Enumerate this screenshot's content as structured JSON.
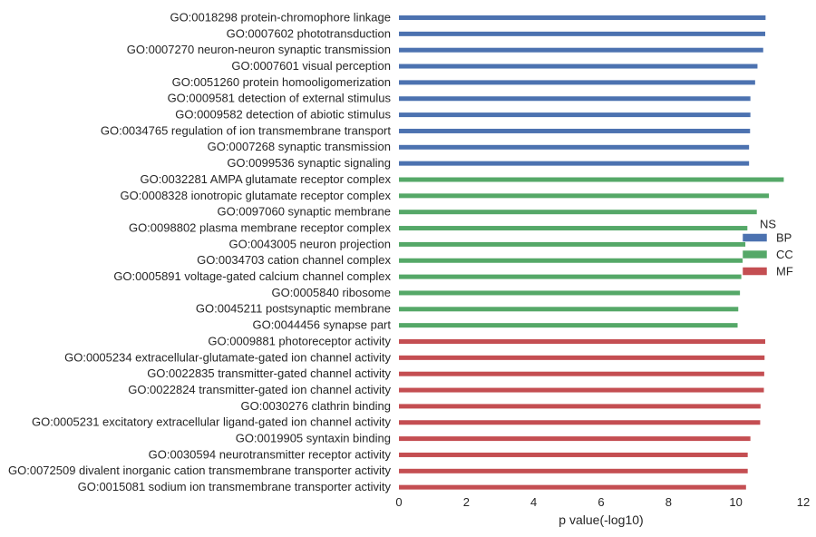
{
  "chart_data": {
    "type": "bar",
    "orientation": "horizontal",
    "xlabel": "p value(-log10)",
    "ylabel": "",
    "title": "",
    "xlim": [
      0,
      12
    ],
    "xticks": [
      "0",
      "2",
      "4",
      "6",
      "8",
      "10",
      "12"
    ],
    "grid": false,
    "legend": {
      "title": "NS",
      "placement": "right",
      "entries": [
        {
          "name": "BP",
          "color": "#4c72b0"
        },
        {
          "name": "CC",
          "color": "#55a868"
        },
        {
          "name": "MF",
          "color": "#c44e52"
        }
      ]
    },
    "categories": [
      "GO:0018298 protein-chromophore linkage",
      "GO:0007602 phototransduction",
      "GO:0007270 neuron-neuron synaptic transmission",
      "GO:0007601 visual perception",
      "GO:0051260 protein homooligomerization",
      "GO:0009581 detection of external stimulus",
      "GO:0009582 detection of abiotic stimulus",
      "GO:0034765 regulation of ion transmembrane transport",
      "GO:0007268 synaptic transmission",
      "GO:0099536 synaptic signaling",
      "GO:0032281 AMPA glutamate receptor complex",
      "GO:0008328 ionotropic glutamate receptor complex",
      "GO:0097060 synaptic membrane",
      "GO:0098802 plasma membrane receptor complex",
      "GO:0043005 neuron projection",
      "GO:0034703 cation channel complex",
      "GO:0005891 voltage-gated calcium channel complex",
      "GO:0005840 ribosome",
      "GO:0045211 postsynaptic membrane",
      "GO:0044456 synapse part",
      "GO:0009881 photoreceptor activity",
      "GO:0005234 extracellular-glutamate-gated ion channel activity",
      "GO:0022835 transmitter-gated channel activity",
      "GO:0022824 transmitter-gated ion channel activity",
      "GO:0030276 clathrin binding",
      "GO:0005231 excitatory extracellular ligand-gated ion channel activity",
      "GO:0019905 syntaxin binding",
      "GO:0030594 neurotransmitter receptor activity",
      "GO:0072509 divalent inorganic cation transmembrane transporter activity",
      "GO:0015081 sodium ion transmembrane transporter activity"
    ],
    "values": [
      10.88,
      10.87,
      10.81,
      10.64,
      10.57,
      10.43,
      10.43,
      10.42,
      10.39,
      10.39,
      11.42,
      10.98,
      10.62,
      10.34,
      10.28,
      10.2,
      10.16,
      10.12,
      10.07,
      10.05,
      10.87,
      10.85,
      10.84,
      10.83,
      10.73,
      10.72,
      10.43,
      10.35,
      10.35,
      10.3
    ],
    "groups": [
      "BP",
      "BP",
      "BP",
      "BP",
      "BP",
      "BP",
      "BP",
      "BP",
      "BP",
      "BP",
      "CC",
      "CC",
      "CC",
      "CC",
      "CC",
      "CC",
      "CC",
      "CC",
      "CC",
      "CC",
      "MF",
      "MF",
      "MF",
      "MF",
      "MF",
      "MF",
      "MF",
      "MF",
      "MF",
      "MF"
    ]
  }
}
